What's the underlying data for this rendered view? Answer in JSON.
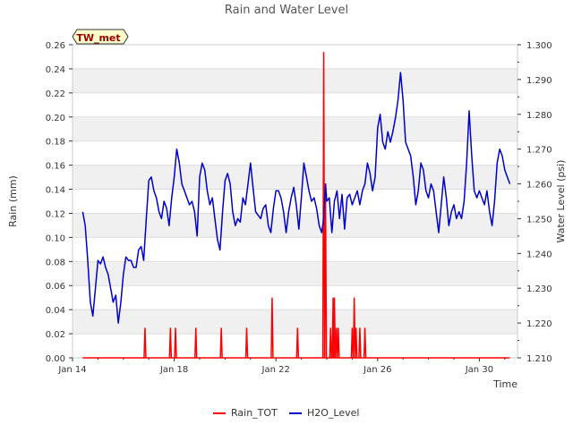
{
  "chart_data": {
    "type": "line",
    "title": "Rain and Water Level",
    "badge": "TW_met",
    "xlabel": "Time",
    "ylabel_left": "Rain (mm)",
    "ylabel_right": "Water Level (psi)",
    "x_range_days": [
      14,
      31.5
    ],
    "x_ticks": [
      {
        "day": 14,
        "label": "Jan 14"
      },
      {
        "day": 18,
        "label": "Jan 18"
      },
      {
        "day": 22,
        "label": "Jan 22"
      },
      {
        "day": 26,
        "label": "Jan 26"
      },
      {
        "day": 30,
        "label": "Jan 30"
      }
    ],
    "ylim_left": [
      0,
      0.26
    ],
    "left_ticks": [
      "0.00",
      "0.02",
      "0.04",
      "0.06",
      "0.08",
      "0.10",
      "0.12",
      "0.14",
      "0.16",
      "0.18",
      "0.20",
      "0.22",
      "0.24",
      "0.26"
    ],
    "ylim_right": [
      1.21,
      1.3
    ],
    "right_ticks": [
      "1.210",
      "1.220",
      "1.230",
      "1.240",
      "1.250",
      "1.260",
      "1.270",
      "1.280",
      "1.290",
      "1.300"
    ],
    "legend_position": "bottom-center",
    "series": [
      {
        "name": "Rain_TOT",
        "axis": "left",
        "color": "#ff0000",
        "baseline_range": [
          14.4,
          31.2
        ],
        "spikes": [
          [
            16.85,
            0.025
          ],
          [
            17.85,
            0.025
          ],
          [
            18.05,
            0.025
          ],
          [
            18.85,
            0.025
          ],
          [
            19.85,
            0.025
          ],
          [
            20.85,
            0.025
          ],
          [
            21.85,
            0.05
          ],
          [
            22.85,
            0.025
          ],
          [
            23.88,
            0.254
          ],
          [
            23.95,
            0.14
          ],
          [
            24.15,
            0.025
          ],
          [
            24.25,
            0.05
          ],
          [
            24.3,
            0.05
          ],
          [
            24.38,
            0.025
          ],
          [
            24.45,
            0.025
          ],
          [
            25.0,
            0.025
          ],
          [
            25.08,
            0.05
          ],
          [
            25.15,
            0.025
          ],
          [
            25.3,
            0.025
          ],
          [
            25.5,
            0.025
          ]
        ]
      },
      {
        "name": "H2O_Level",
        "axis": "right",
        "color": "#0000cc",
        "points": [
          [
            14.4,
            1.252
          ],
          [
            14.5,
            1.248
          ],
          [
            14.6,
            1.238
          ],
          [
            14.7,
            1.226
          ],
          [
            14.8,
            1.222
          ],
          [
            14.9,
            1.23
          ],
          [
            15.0,
            1.238
          ],
          [
            15.1,
            1.237
          ],
          [
            15.2,
            1.239
          ],
          [
            15.3,
            1.236
          ],
          [
            15.4,
            1.234
          ],
          [
            15.5,
            1.23
          ],
          [
            15.6,
            1.226
          ],
          [
            15.7,
            1.228
          ],
          [
            15.8,
            1.22
          ],
          [
            15.9,
            1.226
          ],
          [
            16.0,
            1.234
          ],
          [
            16.1,
            1.239
          ],
          [
            16.2,
            1.238
          ],
          [
            16.3,
            1.238
          ],
          [
            16.4,
            1.236
          ],
          [
            16.5,
            1.236
          ],
          [
            16.6,
            1.241
          ],
          [
            16.7,
            1.242
          ],
          [
            16.8,
            1.238
          ],
          [
            16.9,
            1.25
          ],
          [
            17.0,
            1.261
          ],
          [
            17.1,
            1.262
          ],
          [
            17.2,
            1.258
          ],
          [
            17.3,
            1.256
          ],
          [
            17.4,
            1.252
          ],
          [
            17.5,
            1.25
          ],
          [
            17.6,
            1.255
          ],
          [
            17.7,
            1.253
          ],
          [
            17.8,
            1.248
          ],
          [
            17.9,
            1.256
          ],
          [
            18.0,
            1.262
          ],
          [
            18.1,
            1.27
          ],
          [
            18.2,
            1.266
          ],
          [
            18.3,
            1.26
          ],
          [
            18.4,
            1.258
          ],
          [
            18.5,
            1.256
          ],
          [
            18.6,
            1.254
          ],
          [
            18.7,
            1.255
          ],
          [
            18.8,
            1.252
          ],
          [
            18.9,
            1.245
          ],
          [
            19.0,
            1.262
          ],
          [
            19.1,
            1.266
          ],
          [
            19.2,
            1.264
          ],
          [
            19.3,
            1.258
          ],
          [
            19.4,
            1.254
          ],
          [
            19.5,
            1.256
          ],
          [
            19.6,
            1.25
          ],
          [
            19.7,
            1.244
          ],
          [
            19.8,
            1.241
          ],
          [
            19.9,
            1.252
          ],
          [
            20.0,
            1.261
          ],
          [
            20.1,
            1.263
          ],
          [
            20.2,
            1.26
          ],
          [
            20.3,
            1.252
          ],
          [
            20.4,
            1.248
          ],
          [
            20.5,
            1.25
          ],
          [
            20.6,
            1.249
          ],
          [
            20.7,
            1.256
          ],
          [
            20.8,
            1.254
          ],
          [
            20.9,
            1.26
          ],
          [
            21.0,
            1.266
          ],
          [
            21.1,
            1.259
          ],
          [
            21.2,
            1.252
          ],
          [
            21.3,
            1.251
          ],
          [
            21.4,
            1.25
          ],
          [
            21.5,
            1.253
          ],
          [
            21.6,
            1.254
          ],
          [
            21.7,
            1.248
          ],
          [
            21.8,
            1.246
          ],
          [
            21.9,
            1.253
          ],
          [
            22.0,
            1.258
          ],
          [
            22.1,
            1.258
          ],
          [
            22.2,
            1.256
          ],
          [
            22.3,
            1.252
          ],
          [
            22.4,
            1.246
          ],
          [
            22.5,
            1.252
          ],
          [
            22.6,
            1.256
          ],
          [
            22.7,
            1.259
          ],
          [
            22.8,
            1.254
          ],
          [
            22.9,
            1.247
          ],
          [
            23.0,
            1.256
          ],
          [
            23.1,
            1.266
          ],
          [
            23.2,
            1.262
          ],
          [
            23.3,
            1.258
          ],
          [
            23.4,
            1.255
          ],
          [
            23.5,
            1.256
          ],
          [
            23.6,
            1.253
          ],
          [
            23.7,
            1.248
          ],
          [
            23.8,
            1.246
          ],
          [
            23.88,
            1.25
          ],
          [
            23.95,
            1.26
          ],
          [
            24.0,
            1.255
          ],
          [
            24.1,
            1.256
          ],
          [
            24.2,
            1.246
          ],
          [
            24.3,
            1.255
          ],
          [
            24.4,
            1.258
          ],
          [
            24.5,
            1.25
          ],
          [
            24.6,
            1.257
          ],
          [
            24.7,
            1.247
          ],
          [
            24.8,
            1.256
          ],
          [
            24.9,
            1.257
          ],
          [
            25.0,
            1.254
          ],
          [
            25.1,
            1.256
          ],
          [
            25.2,
            1.258
          ],
          [
            25.3,
            1.254
          ],
          [
            25.4,
            1.258
          ],
          [
            25.5,
            1.26
          ],
          [
            25.6,
            1.266
          ],
          [
            25.7,
            1.263
          ],
          [
            25.8,
            1.258
          ],
          [
            25.9,
            1.262
          ],
          [
            26.0,
            1.276
          ],
          [
            26.1,
            1.28
          ],
          [
            26.2,
            1.272
          ],
          [
            26.3,
            1.27
          ],
          [
            26.4,
            1.275
          ],
          [
            26.5,
            1.272
          ],
          [
            26.6,
            1.275
          ],
          [
            26.7,
            1.279
          ],
          [
            26.8,
            1.284
          ],
          [
            26.9,
            1.292
          ],
          [
            27.0,
            1.284
          ],
          [
            27.1,
            1.272
          ],
          [
            27.2,
            1.27
          ],
          [
            27.3,
            1.268
          ],
          [
            27.4,
            1.262
          ],
          [
            27.5,
            1.254
          ],
          [
            27.6,
            1.258
          ],
          [
            27.7,
            1.266
          ],
          [
            27.8,
            1.264
          ],
          [
            27.9,
            1.258
          ],
          [
            28.0,
            1.256
          ],
          [
            28.1,
            1.26
          ],
          [
            28.2,
            1.258
          ],
          [
            28.3,
            1.252
          ],
          [
            28.4,
            1.246
          ],
          [
            28.5,
            1.254
          ],
          [
            28.6,
            1.262
          ],
          [
            28.7,
            1.256
          ],
          [
            28.8,
            1.248
          ],
          [
            28.9,
            1.252
          ],
          [
            29.0,
            1.254
          ],
          [
            29.1,
            1.25
          ],
          [
            29.2,
            1.252
          ],
          [
            29.3,
            1.25
          ],
          [
            29.4,
            1.255
          ],
          [
            29.5,
            1.266
          ],
          [
            29.6,
            1.281
          ],
          [
            29.7,
            1.268
          ],
          [
            29.8,
            1.258
          ],
          [
            29.9,
            1.256
          ],
          [
            30.0,
            1.258
          ],
          [
            30.1,
            1.256
          ],
          [
            30.2,
            1.254
          ],
          [
            30.3,
            1.258
          ],
          [
            30.4,
            1.252
          ],
          [
            30.5,
            1.248
          ],
          [
            30.6,
            1.255
          ],
          [
            30.7,
            1.266
          ],
          [
            30.8,
            1.27
          ],
          [
            30.9,
            1.268
          ],
          [
            31.0,
            1.264
          ],
          [
            31.1,
            1.262
          ],
          [
            31.2,
            1.26
          ]
        ]
      }
    ]
  }
}
